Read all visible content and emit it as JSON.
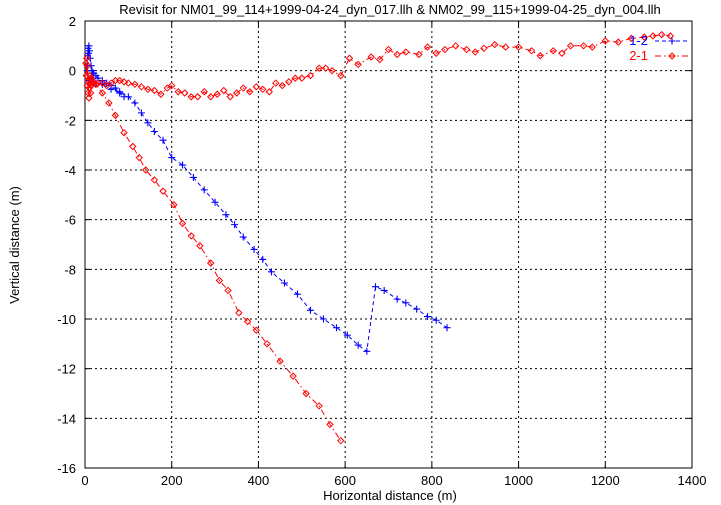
{
  "chart_data": {
    "type": "line",
    "title": "Revisit for NM01_99_114+1999-04-24_dyn_017.llh & NM02_99_115+1999-04-25_dyn_004.llh",
    "xlabel": "Horizontal distance (m)",
    "ylabel": "Vertical distance (m)",
    "xlim": [
      0,
      1400
    ],
    "ylim": [
      -16,
      2
    ],
    "xticks": [
      "0",
      "200",
      "400",
      "600",
      "800",
      "1000",
      "1200",
      "1400"
    ],
    "yticks": [
      "-16",
      "-14",
      "-12",
      "-10",
      "-8",
      "-6",
      "-4",
      "-2",
      "0",
      "2"
    ],
    "grid": true,
    "legend_position": "top-right",
    "colors": {
      "series_1_2": "#0000ff",
      "series_2_1": "#ff0000"
    },
    "series": [
      {
        "name": "1-2",
        "marker": "plus",
        "color": "#0000ff",
        "dash": "dashed",
        "segments": [
          [
            [
              5,
              0.2
            ],
            [
              6,
              0.6
            ],
            [
              7,
              0.9
            ],
            [
              8,
              0.7
            ],
            [
              9,
              1.0
            ],
            [
              10,
              0.8
            ],
            [
              12,
              0.5
            ],
            [
              14,
              0.2
            ],
            [
              16,
              0.0
            ],
            [
              18,
              -0.1
            ],
            [
              20,
              -0.1
            ],
            [
              25,
              -0.2
            ],
            [
              30,
              -0.3
            ],
            [
              40,
              -0.4
            ],
            [
              50,
              -0.5
            ],
            [
              60,
              -0.6
            ],
            [
              70,
              -0.7
            ],
            [
              80,
              -0.9
            ],
            [
              90,
              -1.05
            ]
          ],
          [
            [
              5,
              0.0
            ],
            [
              8,
              -0.4
            ],
            [
              15,
              -0.3
            ],
            [
              25,
              -0.5
            ],
            [
              40,
              -0.55
            ],
            [
              60,
              -0.75
            ],
            [
              80,
              -0.85
            ],
            [
              100,
              -1.05
            ],
            [
              115,
              -1.3
            ],
            [
              130,
              -1.7
            ],
            [
              145,
              -2.1
            ],
            [
              160,
              -2.45
            ],
            [
              180,
              -2.8
            ],
            [
              200,
              -3.5
            ],
            [
              225,
              -3.8
            ],
            [
              250,
              -4.3
            ],
            [
              275,
              -4.8
            ],
            [
              300,
              -5.3
            ],
            [
              325,
              -5.8
            ],
            [
              345,
              -6.2
            ],
            [
              365,
              -6.7
            ],
            [
              390,
              -7.2
            ],
            [
              410,
              -7.6
            ],
            [
              430,
              -8.1
            ],
            [
              460,
              -8.55
            ],
            [
              490,
              -9.0
            ],
            [
              520,
              -9.65
            ],
            [
              550,
              -10.0
            ],
            [
              580,
              -10.35
            ],
            [
              605,
              -10.65
            ],
            [
              630,
              -11.05
            ],
            [
              650,
              -11.3
            ],
            [
              670,
              -8.7
            ],
            [
              690,
              -8.85
            ],
            [
              720,
              -9.2
            ],
            [
              740,
              -9.35
            ],
            [
              765,
              -9.6
            ],
            [
              790,
              -9.9
            ],
            [
              810,
              -10.05
            ],
            [
              835,
              -10.35
            ]
          ]
        ]
      },
      {
        "name": "2-1",
        "marker": "diamond",
        "color": "#ff0000",
        "dash": "dash-dot",
        "segments": [
          [
            [
              2,
              0.3
            ],
            [
              3,
              -0.2
            ],
            [
              4,
              0.5
            ],
            [
              5,
              -0.6
            ],
            [
              6,
              0.2
            ],
            [
              7,
              -0.9
            ],
            [
              8,
              -0.4
            ],
            [
              9,
              -1.1
            ],
            [
              10,
              -0.7
            ],
            [
              11,
              -0.2
            ],
            [
              12,
              -0.5
            ],
            [
              13,
              -0.9
            ],
            [
              14,
              -0.3
            ],
            [
              15,
              -0.6
            ],
            [
              16,
              -0.45
            ],
            [
              18,
              -0.5
            ],
            [
              20,
              -0.5
            ],
            [
              25,
              -0.55
            ],
            [
              30,
              -0.5
            ],
            [
              40,
              -0.5
            ],
            [
              50,
              -0.6
            ],
            [
              60,
              -0.5
            ],
            [
              70,
              -0.4
            ],
            [
              80,
              -0.4
            ],
            [
              90,
              -0.45
            ],
            [
              100,
              -0.5
            ],
            [
              115,
              -0.55
            ],
            [
              130,
              -0.65
            ],
            [
              145,
              -0.75
            ],
            [
              160,
              -0.8
            ],
            [
              175,
              -0.95
            ],
            [
              190,
              -0.7
            ],
            [
              200,
              -0.6
            ],
            [
              215,
              -0.85
            ],
            [
              230,
              -0.9
            ],
            [
              245,
              -1.05
            ],
            [
              260,
              -1.05
            ],
            [
              275,
              -0.85
            ],
            [
              290,
              -1.05
            ],
            [
              305,
              -0.95
            ],
            [
              320,
              -0.8
            ],
            [
              335,
              -1.05
            ],
            [
              350,
              -0.9
            ],
            [
              365,
              -0.7
            ],
            [
              380,
              -0.85
            ],
            [
              395,
              -0.65
            ],
            [
              410,
              -0.75
            ],
            [
              425,
              -0.85
            ],
            [
              440,
              -0.5
            ],
            [
              455,
              -0.6
            ],
            [
              470,
              -0.45
            ],
            [
              485,
              -0.3
            ],
            [
              500,
              -0.3
            ],
            [
              520,
              -0.2
            ],
            [
              540,
              0.1
            ],
            [
              555,
              0.1
            ],
            [
              570,
              0.0
            ],
            [
              590,
              -0.2
            ],
            [
              610,
              0.5
            ],
            [
              630,
              0.25
            ],
            [
              660,
              0.55
            ],
            [
              680,
              0.45
            ],
            [
              700,
              0.85
            ],
            [
              720,
              0.65
            ],
            [
              740,
              0.75
            ],
            [
              770,
              0.65
            ],
            [
              790,
              0.95
            ],
            [
              810,
              0.7
            ],
            [
              830,
              0.85
            ],
            [
              855,
              1.0
            ],
            [
              880,
              0.85
            ],
            [
              900,
              0.75
            ],
            [
              920,
              0.9
            ],
            [
              945,
              1.05
            ],
            [
              970,
              0.95
            ],
            [
              1000,
              0.95
            ],
            [
              1030,
              0.8
            ],
            [
              1050,
              0.6
            ],
            [
              1080,
              0.8
            ],
            [
              1100,
              0.7
            ],
            [
              1120,
              1.0
            ],
            [
              1150,
              1.0
            ],
            [
              1170,
              0.95
            ],
            [
              1200,
              1.2
            ],
            [
              1230,
              1.15
            ],
            [
              1260,
              1.3
            ],
            [
              1290,
              1.35
            ],
            [
              1310,
              1.4
            ],
            [
              1330,
              1.45
            ],
            [
              1350,
              1.4
            ]
          ],
          [
            [
              15,
              -0.35
            ],
            [
              25,
              -0.55
            ],
            [
              40,
              -0.9
            ],
            [
              55,
              -1.3
            ],
            [
              70,
              -1.8
            ],
            [
              90,
              -2.5
            ],
            [
              110,
              -3.05
            ],
            [
              125,
              -3.5
            ],
            [
              140,
              -4.0
            ],
            [
              160,
              -4.4
            ],
            [
              180,
              -4.85
            ],
            [
              205,
              -5.4
            ],
            [
              225,
              -6.15
            ],
            [
              245,
              -6.65
            ],
            [
              265,
              -7.05
            ],
            [
              290,
              -7.75
            ],
            [
              310,
              -8.45
            ],
            [
              330,
              -8.85
            ],
            [
              355,
              -9.75
            ],
            [
              375,
              -10.1
            ],
            [
              395,
              -10.45
            ],
            [
              420,
              -11.0
            ],
            [
              450,
              -11.7
            ],
            [
              480,
              -12.3
            ],
            [
              510,
              -13.0
            ],
            [
              540,
              -13.5
            ],
            [
              565,
              -14.25
            ],
            [
              590,
              -14.9
            ]
          ]
        ]
      }
    ]
  }
}
